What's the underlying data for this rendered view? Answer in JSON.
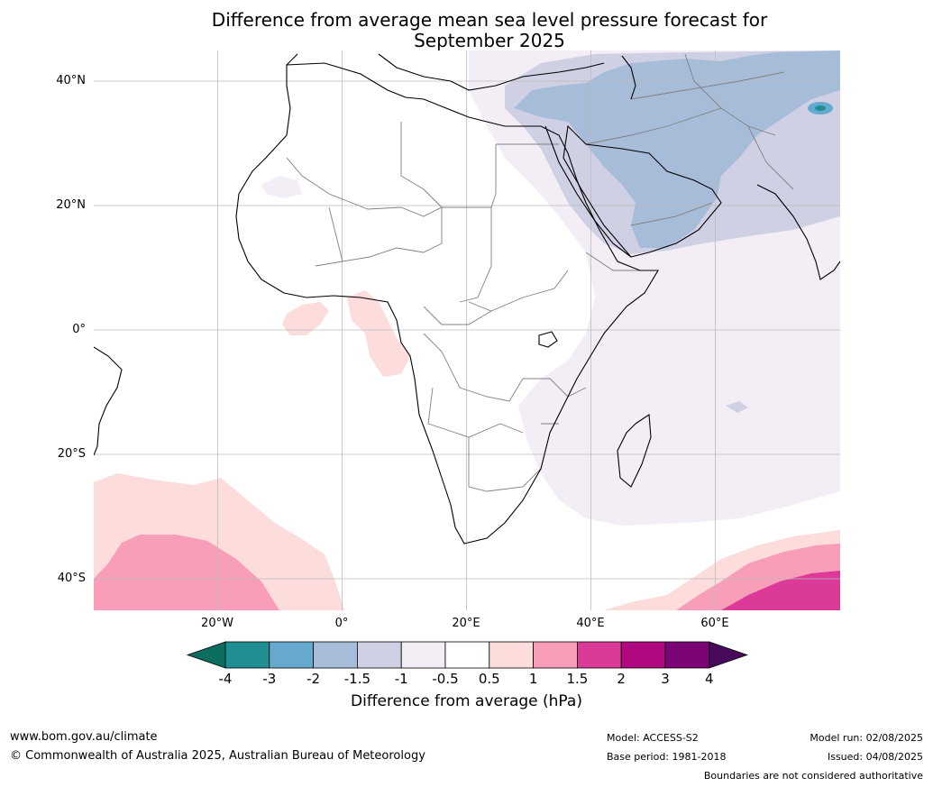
{
  "title": {
    "line1": "Difference from average mean sea level pressure forecast for",
    "line2": "September 2025"
  },
  "map": {
    "extent": {
      "lon_min": -40,
      "lon_max": 80,
      "lat_min": -45,
      "lat_max": 45
    },
    "grid": true,
    "lat_ticks": [
      {
        "value": 40,
        "label": "40°N"
      },
      {
        "value": 20,
        "label": "20°N"
      },
      {
        "value": 0,
        "label": "0°"
      },
      {
        "value": -20,
        "label": "20°S"
      },
      {
        "value": -40,
        "label": "40°S"
      }
    ],
    "lon_ticks": [
      {
        "value": -20,
        "label": "20°W"
      },
      {
        "value": 0,
        "label": "0°"
      },
      {
        "value": 20,
        "label": "20°E"
      },
      {
        "value": 40,
        "label": "40°E"
      },
      {
        "value": 60,
        "label": "60°E"
      }
    ],
    "colors": {
      "land_outline": "#000000",
      "borders": "#808080",
      "grid": "#bbbbbb"
    }
  },
  "colorbar": {
    "title": "Difference from average (hPa)",
    "ticks": [
      "-4",
      "-3",
      "-2",
      "-1.5",
      "-1",
      "-0.5",
      "0.5",
      "1",
      "1.5",
      "2",
      "3",
      "4"
    ],
    "under_color": "#0b6e5f",
    "over_color": "#4a0a5c",
    "colors": [
      "#1f8f94",
      "#66a9cf",
      "#a7bcd9",
      "#cfd0e4",
      "#f3edf5",
      "#ffffff",
      "#fddcdc",
      "#f89eb8",
      "#db3a99",
      "#b0087e",
      "#7b0576"
    ]
  },
  "footer": {
    "url": "www.bom.gov.au/climate",
    "copyright": "© Commonwealth of Australia 2025, Australian Bureau of Meteorology",
    "model": "Model: ACCESS-S2",
    "base_period": "Base period: 1981-2018",
    "model_run": "Model run: 02/08/2025",
    "issued": "Issued: 04/08/2025",
    "disclaimer": "Boundaries are not considered authoritative"
  }
}
